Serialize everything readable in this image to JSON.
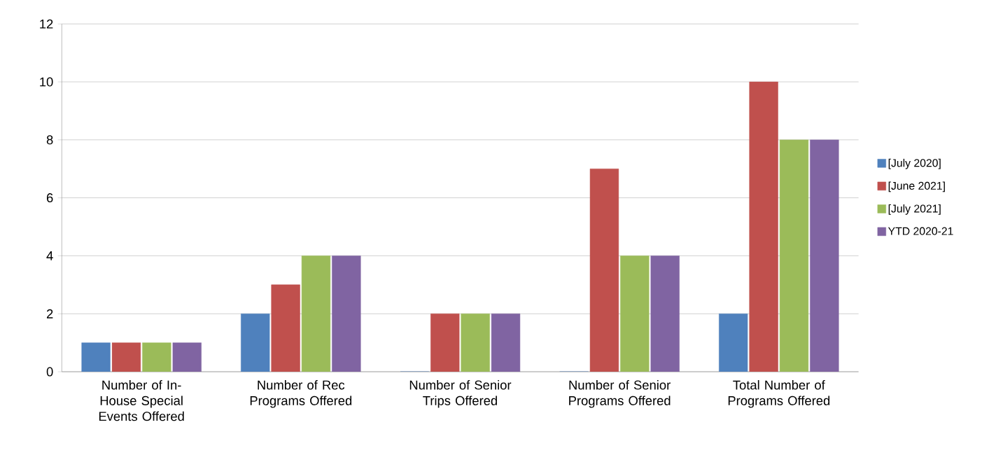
{
  "chart_data": {
    "type": "bar",
    "categories": [
      "Number of In-House Special Events Offered",
      "Number of Rec Programs Offered",
      "Number of Senior Trips Offered",
      "Number of Senior Programs Offered",
      "Total Number of Programs Offered"
    ],
    "series": [
      {
        "name": "[July 2020]",
        "color": "#4f81bd",
        "values": [
          1,
          2,
          0,
          0,
          2
        ]
      },
      {
        "name": "[June 2021]",
        "color": "#c0504d",
        "values": [
          1,
          3,
          2,
          7,
          10
        ]
      },
      {
        "name": "[July 2021]",
        "color": "#9bbb59",
        "values": [
          1,
          4,
          2,
          4,
          8
        ]
      },
      {
        "name": "YTD 2020-21",
        "color": "#8064a2",
        "values": [
          1,
          4,
          2,
          4,
          8
        ]
      }
    ],
    "ylim": [
      0,
      12
    ],
    "yticks": [
      0,
      2,
      4,
      6,
      8,
      10,
      12
    ],
    "grid": "y",
    "legend": "right"
  }
}
